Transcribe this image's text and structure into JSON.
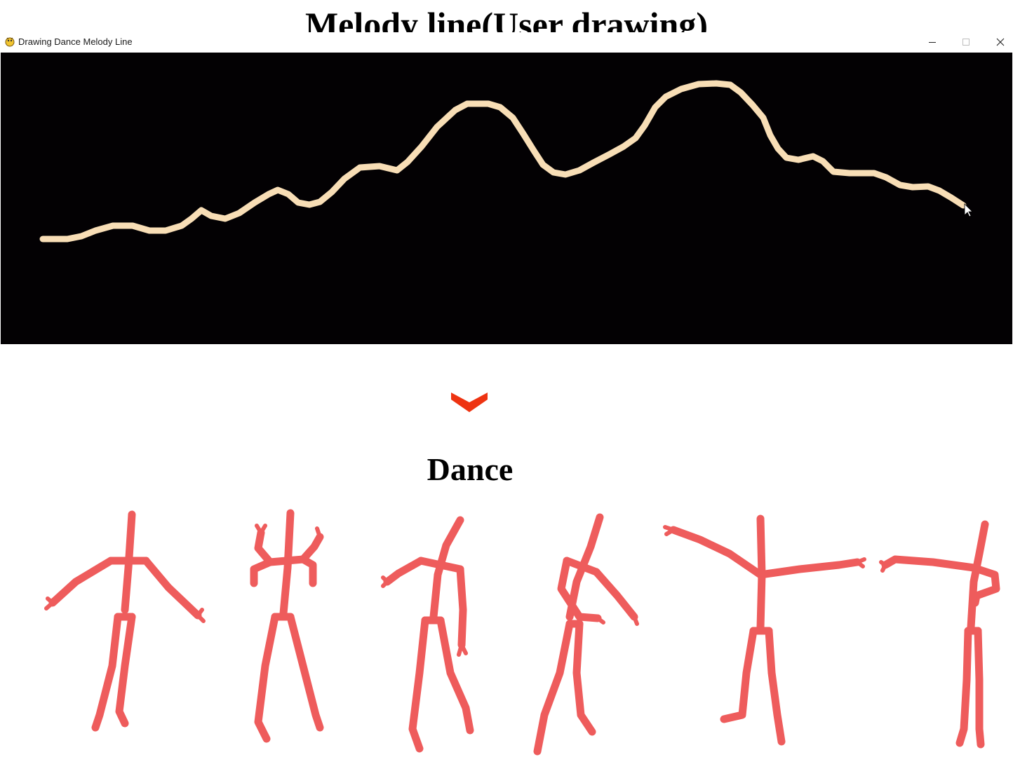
{
  "headings": {
    "melody_title": "Melody line(User drawing)",
    "dance_title": "Dance"
  },
  "window": {
    "title": "Drawing Dance Melody Line",
    "icon": "pygame-snake-icon",
    "controls": [
      "minimize-icon",
      "maximize-icon",
      "close-icon"
    ]
  },
  "canvas": {
    "background": "#030103",
    "stroke_color": "#F8DEB6",
    "cursor": "arrow-cursor-icon"
  },
  "arrow": {
    "icon": "chevron-down-icon",
    "color": "#EE3311"
  },
  "dance": {
    "figure_color": "#EE5C5C",
    "figure_count": 6
  }
}
